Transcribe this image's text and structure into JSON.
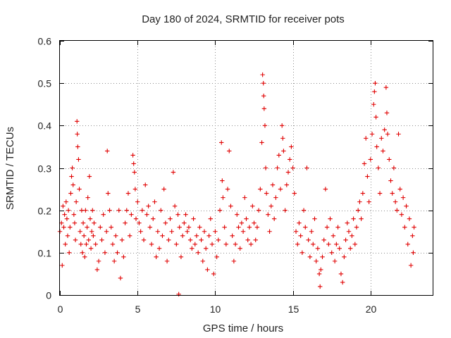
{
  "chart_data": {
    "type": "scatter",
    "title": "Day 180 of 2024, SRMTID for receiver pots",
    "xlabel": "GPS time / hours",
    "ylabel": "SRMTID / TECUs",
    "xlim": [
      0,
      24
    ],
    "ylim": [
      0,
      0.6
    ],
    "xticks": [
      0,
      5,
      10,
      15,
      20
    ],
    "xtick_labels": [
      "0",
      "5",
      "10",
      "15",
      "20"
    ],
    "yticks": [
      0,
      0.1,
      0.2,
      0.3,
      0.4,
      0.5,
      0.6
    ],
    "ytick_labels": [
      "0",
      "0.1",
      "0.2",
      "0.3",
      "0.4",
      "0.5",
      "0.6"
    ],
    "grid": true,
    "marker": "plus",
    "color": "#e00000",
    "series": [
      {
        "name": "SRMTID",
        "points": [
          [
            0.0,
            0.15
          ],
          [
            0.1,
            0.17
          ],
          [
            0.15,
            0.07
          ],
          [
            0.2,
            0.21
          ],
          [
            0.25,
            0.16
          ],
          [
            0.3,
            0.19
          ],
          [
            0.35,
            0.12
          ],
          [
            0.4,
            0.22
          ],
          [
            0.45,
            0.18
          ],
          [
            0.5,
            0.14
          ],
          [
            0.55,
            0.2
          ],
          [
            0.6,
            0.1
          ],
          [
            0.65,
            0.16
          ],
          [
            0.7,
            0.24
          ],
          [
            0.75,
            0.28
          ],
          [
            0.8,
            0.3
          ],
          [
            0.85,
            0.26
          ],
          [
            0.9,
            0.19
          ],
          [
            0.95,
            0.17
          ],
          [
            1.0,
            0.13
          ],
          [
            1.05,
            0.22
          ],
          [
            1.1,
            0.41
          ],
          [
            1.12,
            0.38
          ],
          [
            1.15,
            0.35
          ],
          [
            1.2,
            0.32
          ],
          [
            1.25,
            0.25
          ],
          [
            1.3,
            0.15
          ],
          [
            1.35,
            0.12
          ],
          [
            1.4,
            0.2
          ],
          [
            1.45,
            0.1
          ],
          [
            1.5,
            0.17
          ],
          [
            1.55,
            0.14
          ],
          [
            1.6,
            0.09
          ],
          [
            1.65,
            0.2
          ],
          [
            1.7,
            0.12
          ],
          [
            1.75,
            0.16
          ],
          [
            1.8,
            0.23
          ],
          [
            1.85,
            0.13
          ],
          [
            1.9,
            0.28
          ],
          [
            1.95,
            0.18
          ],
          [
            2.0,
            0.11
          ],
          [
            2.05,
            0.15
          ],
          [
            2.1,
            0.2
          ],
          [
            2.15,
            0.14
          ],
          [
            2.2,
            0.17
          ],
          [
            2.3,
            0.12
          ],
          [
            2.4,
            0.06
          ],
          [
            2.5,
            0.08
          ],
          [
            2.6,
            0.16
          ],
          [
            2.7,
            0.13
          ],
          [
            2.8,
            0.19
          ],
          [
            2.9,
            0.1
          ],
          [
            3.0,
            0.15
          ],
          [
            3.05,
            0.34
          ],
          [
            3.1,
            0.24
          ],
          [
            3.2,
            0.2
          ],
          [
            3.3,
            0.16
          ],
          [
            3.4,
            0.12
          ],
          [
            3.5,
            0.08
          ],
          [
            3.6,
            0.14
          ],
          [
            3.7,
            0.1
          ],
          [
            3.8,
            0.2
          ],
          [
            3.9,
            0.04
          ],
          [
            4.0,
            0.13
          ],
          [
            4.1,
            0.09
          ],
          [
            4.2,
            0.17
          ],
          [
            4.3,
            0.2
          ],
          [
            4.4,
            0.24
          ],
          [
            4.5,
            0.14
          ],
          [
            4.6,
            0.19
          ],
          [
            4.7,
            0.33
          ],
          [
            4.75,
            0.31
          ],
          [
            4.8,
            0.29
          ],
          [
            4.85,
            0.25
          ],
          [
            4.9,
            0.18
          ],
          [
            5.0,
            0.22
          ],
          [
            5.1,
            0.17
          ],
          [
            5.2,
            0.15
          ],
          [
            5.3,
            0.2
          ],
          [
            5.4,
            0.13
          ],
          [
            5.5,
            0.26
          ],
          [
            5.6,
            0.19
          ],
          [
            5.7,
            0.21
          ],
          [
            5.8,
            0.16
          ],
          [
            5.9,
            0.12
          ],
          [
            6.0,
            0.18
          ],
          [
            6.1,
            0.22
          ],
          [
            6.2,
            0.09
          ],
          [
            6.3,
            0.15
          ],
          [
            6.4,
            0.11
          ],
          [
            6.5,
            0.2
          ],
          [
            6.6,
            0.14
          ],
          [
            6.7,
            0.25
          ],
          [
            6.8,
            0.17
          ],
          [
            6.9,
            0.08
          ],
          [
            7.0,
            0.13
          ],
          [
            7.1,
            0.18
          ],
          [
            7.2,
            0.15
          ],
          [
            7.3,
            0.29
          ],
          [
            7.4,
            0.21
          ],
          [
            7.5,
            0.12
          ],
          [
            7.6,
            0.19
          ],
          [
            7.65,
            0.002
          ],
          [
            7.7,
            0.16
          ],
          [
            7.8,
            0.09
          ],
          [
            7.9,
            0.14
          ],
          [
            8.0,
            0.17
          ],
          [
            8.1,
            0.19
          ],
          [
            8.2,
            0.15
          ],
          [
            8.3,
            0.16
          ],
          [
            8.4,
            0.13
          ],
          [
            8.5,
            0.11
          ],
          [
            8.6,
            0.18
          ],
          [
            8.7,
            0.12
          ],
          [
            8.8,
            0.14
          ],
          [
            8.9,
            0.1
          ],
          [
            9.0,
            0.16
          ],
          [
            9.1,
            0.13
          ],
          [
            9.2,
            0.08
          ],
          [
            9.3,
            0.15
          ],
          [
            9.4,
            0.11
          ],
          [
            9.5,
            0.06
          ],
          [
            9.6,
            0.14
          ],
          [
            9.7,
            0.18
          ],
          [
            9.8,
            0.12
          ],
          [
            9.9,
            0.05
          ],
          [
            10.0,
            0.15
          ],
          [
            10.1,
            0.09
          ],
          [
            10.2,
            0.13
          ],
          [
            10.3,
            0.2
          ],
          [
            10.4,
            0.36
          ],
          [
            10.45,
            0.27
          ],
          [
            10.5,
            0.23
          ],
          [
            10.6,
            0.16
          ],
          [
            10.7,
            0.12
          ],
          [
            10.8,
            0.25
          ],
          [
            10.9,
            0.34
          ],
          [
            11.0,
            0.21
          ],
          [
            11.1,
            0.14
          ],
          [
            11.2,
            0.08
          ],
          [
            11.3,
            0.12
          ],
          [
            11.4,
            0.19
          ],
          [
            11.5,
            0.16
          ],
          [
            11.6,
            0.11
          ],
          [
            11.7,
            0.17
          ],
          [
            11.8,
            0.15
          ],
          [
            11.9,
            0.23
          ],
          [
            12.0,
            0.18
          ],
          [
            12.1,
            0.13
          ],
          [
            12.2,
            0.16
          ],
          [
            12.3,
            0.12
          ],
          [
            12.4,
            0.21
          ],
          [
            12.5,
            0.17
          ],
          [
            12.6,
            0.13
          ],
          [
            12.7,
            0.16
          ],
          [
            12.8,
            0.2
          ],
          [
            12.9,
            0.25
          ],
          [
            13.0,
            0.36
          ],
          [
            13.05,
            0.52
          ],
          [
            13.1,
            0.5
          ],
          [
            13.12,
            0.47
          ],
          [
            13.15,
            0.44
          ],
          [
            13.2,
            0.4
          ],
          [
            13.25,
            0.3
          ],
          [
            13.3,
            0.24
          ],
          [
            13.4,
            0.19
          ],
          [
            13.5,
            0.15
          ],
          [
            13.6,
            0.21
          ],
          [
            13.7,
            0.26
          ],
          [
            13.8,
            0.18
          ],
          [
            13.9,
            0.23
          ],
          [
            14.0,
            0.3
          ],
          [
            14.1,
            0.33
          ],
          [
            14.2,
            0.25
          ],
          [
            14.3,
            0.4
          ],
          [
            14.35,
            0.37
          ],
          [
            14.4,
            0.34
          ],
          [
            14.5,
            0.2
          ],
          [
            14.6,
            0.26
          ],
          [
            14.7,
            0.29
          ],
          [
            14.8,
            0.32
          ],
          [
            14.9,
            0.35
          ],
          [
            15.0,
            0.3
          ],
          [
            15.1,
            0.24
          ],
          [
            15.2,
            0.15
          ],
          [
            15.3,
            0.12
          ],
          [
            15.4,
            0.17
          ],
          [
            15.5,
            0.14
          ],
          [
            15.6,
            0.1
          ],
          [
            15.7,
            0.2
          ],
          [
            15.8,
            0.16
          ],
          [
            15.9,
            0.3
          ],
          [
            16.0,
            0.13
          ],
          [
            16.1,
            0.09
          ],
          [
            16.2,
            0.15
          ],
          [
            16.3,
            0.12
          ],
          [
            16.4,
            0.18
          ],
          [
            16.5,
            0.08
          ],
          [
            16.6,
            0.11
          ],
          [
            16.7,
            0.05
          ],
          [
            16.75,
            0.02
          ],
          [
            16.8,
            0.06
          ],
          [
            16.9,
            0.09
          ],
          [
            17.0,
            0.13
          ],
          [
            17.1,
            0.25
          ],
          [
            17.2,
            0.16
          ],
          [
            17.3,
            0.12
          ],
          [
            17.4,
            0.18
          ],
          [
            17.5,
            0.1
          ],
          [
            17.6,
            0.14
          ],
          [
            17.7,
            0.08
          ],
          [
            17.8,
            0.12
          ],
          [
            17.9,
            0.16
          ],
          [
            18.0,
            0.11
          ],
          [
            18.1,
            0.05
          ],
          [
            18.2,
            0.03
          ],
          [
            18.3,
            0.09
          ],
          [
            18.4,
            0.13
          ],
          [
            18.5,
            0.17
          ],
          [
            18.6,
            0.15
          ],
          [
            18.7,
            0.11
          ],
          [
            18.8,
            0.14
          ],
          [
            18.9,
            0.18
          ],
          [
            19.0,
            0.12
          ],
          [
            19.1,
            0.16
          ],
          [
            19.2,
            0.2
          ],
          [
            19.3,
            0.22
          ],
          [
            19.4,
            0.18
          ],
          [
            19.5,
            0.24
          ],
          [
            19.6,
            0.31
          ],
          [
            19.7,
            0.37
          ],
          [
            19.8,
            0.28
          ],
          [
            19.9,
            0.22
          ],
          [
            20.0,
            0.32
          ],
          [
            20.1,
            0.38
          ],
          [
            20.2,
            0.45
          ],
          [
            20.25,
            0.48
          ],
          [
            20.3,
            0.5
          ],
          [
            20.35,
            0.42
          ],
          [
            20.4,
            0.35
          ],
          [
            20.5,
            0.3
          ],
          [
            20.6,
            0.24
          ],
          [
            20.7,
            0.37
          ],
          [
            20.8,
            0.34
          ],
          [
            20.9,
            0.39
          ],
          [
            21.0,
            0.49
          ],
          [
            21.05,
            0.43
          ],
          [
            21.1,
            0.38
          ],
          [
            21.2,
            0.32
          ],
          [
            21.3,
            0.27
          ],
          [
            21.4,
            0.24
          ],
          [
            21.5,
            0.3
          ],
          [
            21.6,
            0.22
          ],
          [
            21.7,
            0.2
          ],
          [
            21.8,
            0.38
          ],
          [
            21.9,
            0.25
          ],
          [
            22.0,
            0.19
          ],
          [
            22.1,
            0.23
          ],
          [
            22.2,
            0.16
          ],
          [
            22.3,
            0.21
          ],
          [
            22.4,
            0.12
          ],
          [
            22.5,
            0.18
          ],
          [
            22.6,
            0.07
          ],
          [
            22.7,
            0.14
          ],
          [
            22.75,
            0.1
          ],
          [
            22.8,
            0.16
          ]
        ]
      }
    ]
  }
}
